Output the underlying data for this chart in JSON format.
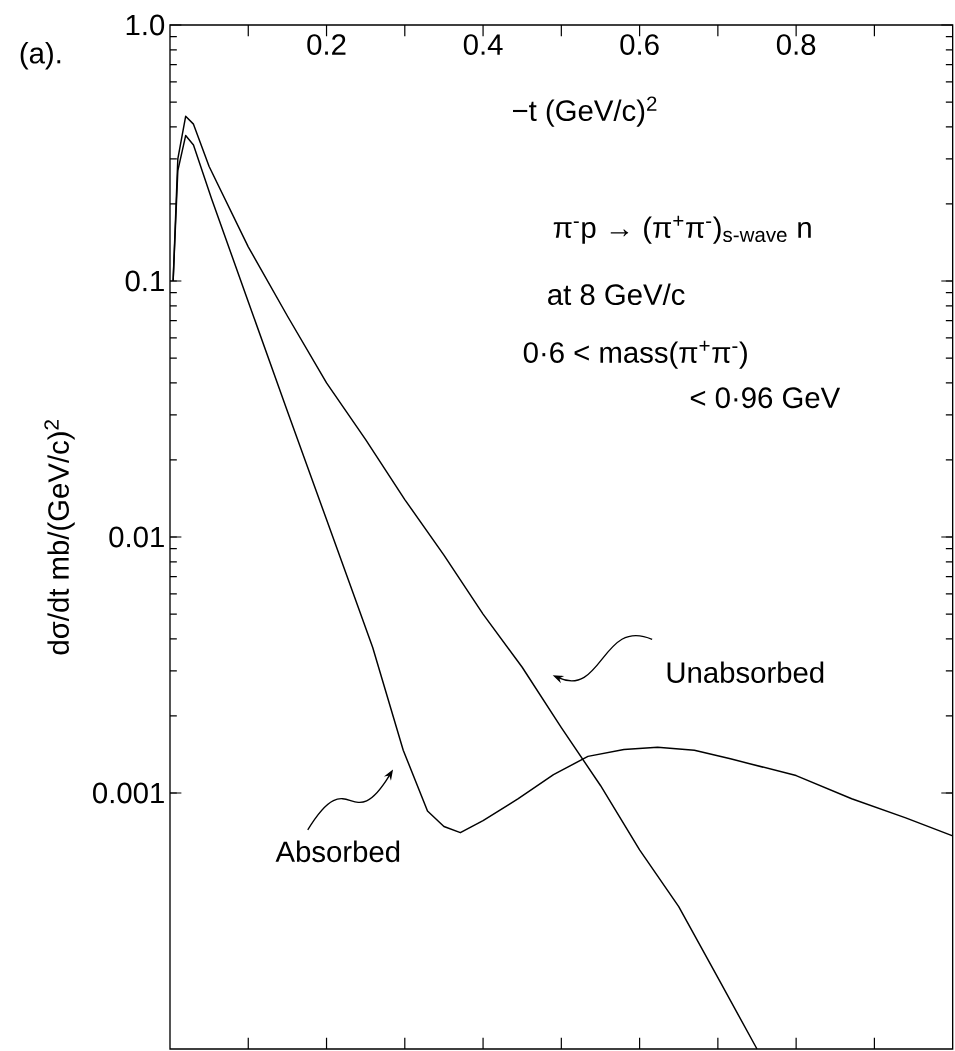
{
  "chart_data": {
    "type": "line",
    "log": "y",
    "xlabel": "−t  (GeV/c)$^{2}$",
    "ylabel": "dσ/dt  mb/(GeV/c)$^{2}$",
    "annotations": [
      "(a).",
      "π$^{-}$p → (π$^{+}$π$^{-}$)$_{s-wave}$ n",
      "at 8  GeV/c",
      "0·6 < mass(π$^{+}$π$^{-}$)",
      "< 0·96  GeV"
    ],
    "xlim": [
      0,
      1
    ],
    "ylim": [
      0.0001,
      1
    ],
    "xticks": [
      {
        "value": 0.1,
        "label": null
      },
      0.2,
      {
        "value": 0.3,
        "label": null
      },
      0.4,
      {
        "value": 0.5,
        "label": null
      },
      0.6,
      {
        "value": 0.7,
        "label": null
      },
      0.8,
      {
        "value": 0.9,
        "label": null
      }
    ],
    "yticks": [
      0.001,
      0.01,
      0.1,
      {
        "value": 1,
        "label": "1.0"
      }
    ],
    "series": [
      {
        "name": "Unabsorbed",
        "color": "#000000",
        "x": [
          0.004,
          0.01,
          0.02,
          0.03,
          0.05,
          0.1,
          0.15,
          0.2,
          0.25,
          0.3,
          0.35,
          0.4,
          0.45,
          0.5,
          0.55,
          0.6,
          0.65,
          0.7,
          0.75
        ],
        "values": [
          0.1,
          0.3,
          0.44,
          0.41,
          0.28,
          0.136,
          0.073,
          0.04,
          0.024,
          0.014,
          0.0085,
          0.005,
          0.0031,
          0.0018,
          0.00107,
          0.0006,
          0.00036,
          0.00019,
          0.0001
        ]
      },
      {
        "name": "Absorbed",
        "color": "#000000",
        "x": [
          0.004,
          0.01,
          0.02,
          0.03,
          0.053,
          0.1,
          0.15,
          0.2,
          0.236,
          0.259,
          0.298,
          0.329,
          0.35,
          0.371,
          0.4,
          0.445,
          0.49,
          0.534,
          0.58,
          0.623,
          0.67,
          0.716,
          0.8,
          0.871,
          0.94,
          1.0
        ],
        "values": [
          0.1,
          0.27,
          0.37,
          0.34,
          0.21,
          0.083,
          0.031,
          0.0117,
          0.0058,
          0.0037,
          0.00147,
          0.00085,
          0.00074,
          0.0007,
          0.00078,
          0.00095,
          0.00118,
          0.00139,
          0.00148,
          0.00151,
          0.00147,
          0.00136,
          0.00117,
          0.00095,
          0.0008,
          0.00068
        ]
      }
    ]
  }
}
